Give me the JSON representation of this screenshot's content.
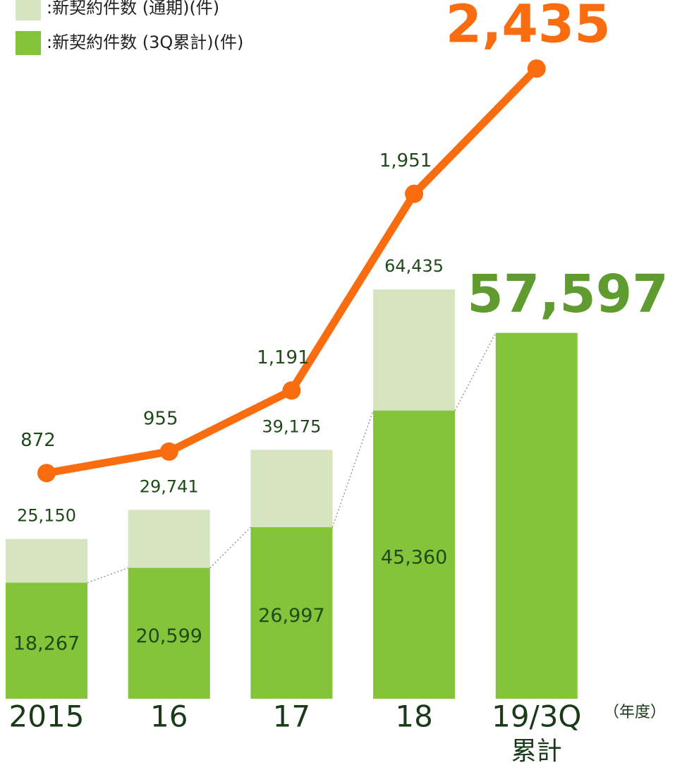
{
  "chart_data": {
    "type": "bar",
    "categories": [
      "2015",
      "16",
      "17",
      "18",
      "19/3Q"
    ],
    "category_sublabels": [
      null,
      null,
      null,
      null,
      "累計"
    ],
    "x_unit_label": "（年度）",
    "ylim": [
      0,
      110000
    ],
    "y2lim": [
      0,
      2700
    ],
    "series": [
      {
        "name": ":新契約件数 (通期)(件)",
        "color": "#d6e4bf",
        "values": [
          25150,
          29741,
          39175,
          64435,
          null
        ],
        "value_labels": [
          "25,150",
          "29,741",
          "39,175",
          "64,435",
          null
        ]
      },
      {
        "name": ":新契約件数 (3Q累計)(件)",
        "color": "#84c43a",
        "values": [
          18267,
          20599,
          26997,
          45360,
          57597
        ],
        "value_labels": [
          "18,267",
          "20,599",
          "26,997",
          "45,360",
          "57,597"
        ]
      },
      {
        "type": "line",
        "axis": "y2",
        "color": "#f96d10",
        "values": [
          872,
          955,
          1191,
          1951,
          2435
        ],
        "value_labels": [
          "872",
          "955",
          "1,191",
          "1,951",
          "2,435"
        ]
      }
    ]
  }
}
